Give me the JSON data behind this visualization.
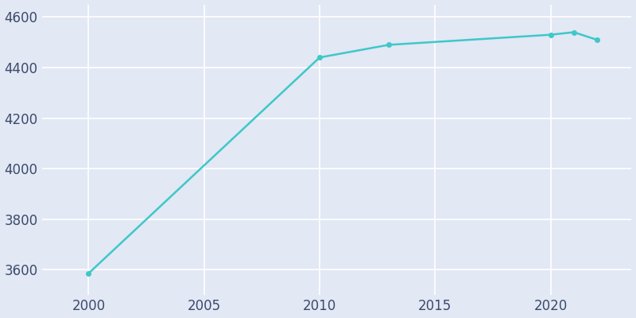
{
  "years": [
    2000,
    2010,
    2013,
    2020,
    2021,
    2022
  ],
  "population": [
    3585,
    4440,
    4490,
    4530,
    4540,
    4510
  ],
  "line_color": "#3ec8c8",
  "bg_color": "#e2e8f4",
  "figure_bg": "#e2e8f4",
  "grid_color": "#ffffff",
  "tick_color": "#3b4a6b",
  "ylim": [
    3500,
    4650
  ],
  "yticks": [
    3600,
    3800,
    4000,
    4200,
    4400,
    4600
  ],
  "xticks": [
    2000,
    2005,
    2010,
    2015,
    2020
  ],
  "xlim": [
    1998,
    2023.5
  ],
  "marker_size": 4,
  "linewidth": 1.8,
  "tick_labelsize": 12
}
